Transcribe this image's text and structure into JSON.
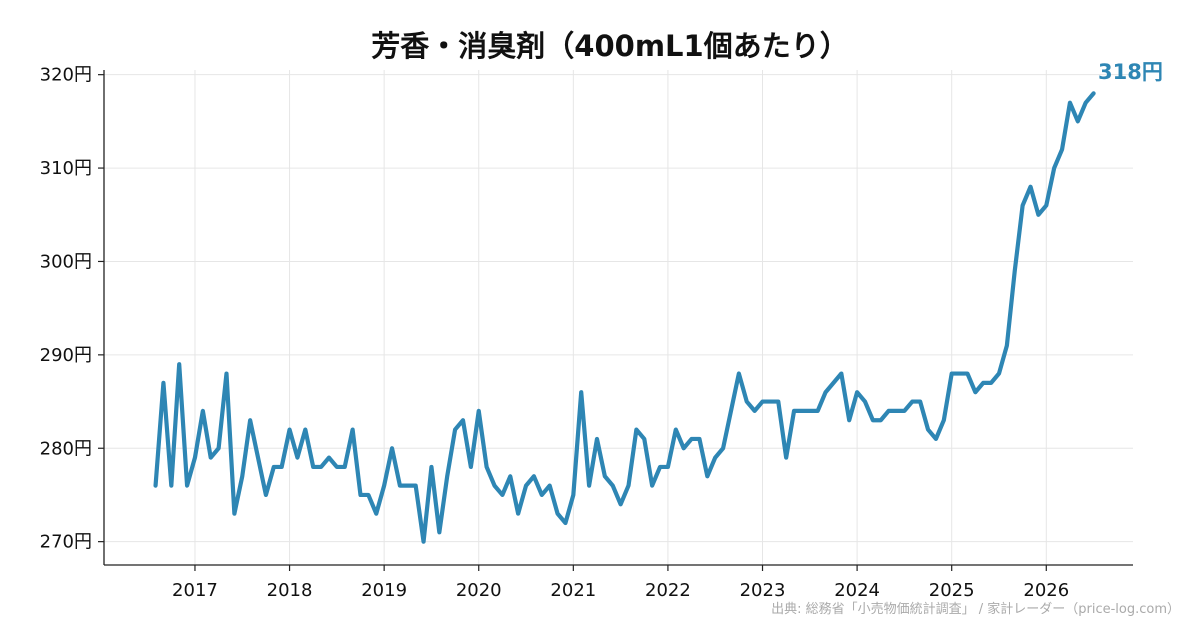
{
  "chart_data": {
    "type": "line",
    "title": "芳香・消臭剤（400mL1個あたり）",
    "xlabel": "",
    "ylabel": "",
    "ylim": [
      267.5,
      320.5
    ],
    "xlim": [
      "2016-01-15",
      "2026-12-01"
    ],
    "y_ticks": [
      270,
      280,
      290,
      300,
      310,
      320
    ],
    "y_tick_unit": "円",
    "x_ticks": [
      "2017",
      "2018",
      "2019",
      "2020",
      "2021",
      "2022",
      "2023",
      "2024",
      "2025",
      "2026"
    ],
    "grid": true,
    "line_color": "#2e86b4",
    "end_label": "318円",
    "source": "出典: 総務省「小売物価統計調査」 / 家計レーダー（price-log.com）",
    "series": [
      {
        "start": "2016-08",
        "values": [
          276,
          287,
          276,
          289,
          276,
          279,
          284,
          279,
          280,
          288,
          273,
          277,
          283,
          279,
          275,
          278,
          278,
          282,
          279,
          282,
          278,
          278,
          279,
          278,
          278,
          282,
          275,
          275,
          273,
          276,
          280,
          276,
          276,
          276,
          270,
          278,
          271,
          277,
          282,
          283,
          278,
          284,
          278,
          276,
          275,
          277,
          273,
          276,
          277,
          275,
          276,
          273,
          272,
          275,
          286,
          276,
          281,
          277,
          276,
          274,
          276,
          282,
          281,
          276,
          278,
          278,
          282,
          280,
          281,
          281,
          277,
          279,
          280,
          284,
          288,
          285,
          284,
          285,
          285,
          285,
          279,
          284,
          284,
          284,
          284,
          286,
          287,
          288,
          283,
          286,
          285,
          283,
          283,
          284,
          284,
          284,
          285,
          285,
          282,
          281,
          283,
          288,
          288,
          288,
          286,
          287,
          287,
          288,
          291,
          299,
          306,
          308,
          305,
          306,
          310,
          312,
          317,
          315,
          317,
          318
        ]
      }
    ]
  }
}
